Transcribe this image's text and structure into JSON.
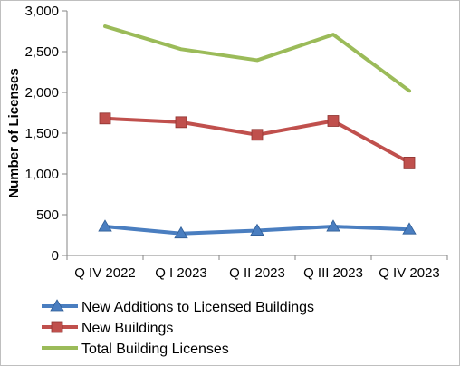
{
  "chart_data": {
    "type": "line",
    "categories": [
      "Q IV 2022",
      "Q I 2023",
      "Q II 2023",
      "Q III 2023",
      "Q IV 2023"
    ],
    "series": [
      {
        "name": "New Additions to Licensed Buildings",
        "values": [
          355,
          270,
          305,
          355,
          320
        ],
        "color": "#4a7ec0",
        "marker": "triangle"
      },
      {
        "name": "New Buildings",
        "values": [
          1680,
          1635,
          1480,
          1650,
          1140
        ],
        "color": "#c0504d",
        "marker": "square"
      },
      {
        "name": "Total Building Licenses",
        "values": [
          2810,
          2530,
          2395,
          2710,
          2020
        ],
        "color": "#9bbb59",
        "marker": "none"
      }
    ],
    "title": "",
    "xlabel": "",
    "ylabel": "Number of Licenses",
    "ylim": [
      0,
      3000
    ],
    "yticks": [
      0,
      500,
      1000,
      1500,
      2000,
      2500,
      3000
    ],
    "ytick_labels": [
      "0",
      "500",
      "1,000",
      "1,500",
      "2,000",
      "2,500",
      "3,000"
    ],
    "grid": false,
    "legend_position": "bottom"
  }
}
